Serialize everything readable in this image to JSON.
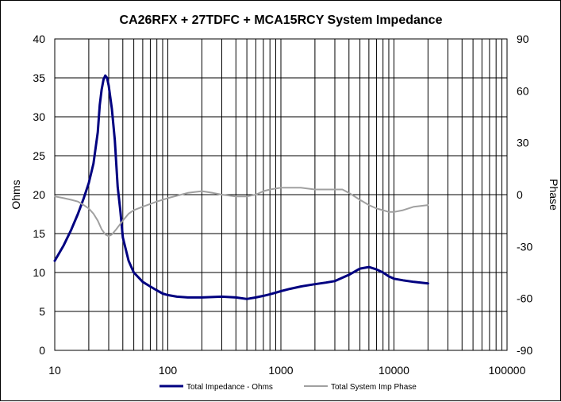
{
  "chart_data": {
    "type": "line",
    "title": "CA26RFX + 27TDFC + MCA15RCY  System Impedance",
    "xlabel": "",
    "ylabel": "Ohms",
    "y2label": "Phase",
    "x_scale": "log",
    "xlim": [
      10,
      100000
    ],
    "ylim": [
      0,
      40
    ],
    "y2lim": [
      -90,
      90
    ],
    "x_ticks": [
      "10",
      "100",
      "1000",
      "10000",
      "100000"
    ],
    "y_ticks": [
      "0",
      "5",
      "10",
      "15",
      "20",
      "25",
      "30",
      "35",
      "40"
    ],
    "y2_ticks": [
      "-90",
      "-60",
      "-30",
      "0",
      "30",
      "60",
      "90"
    ],
    "grid": true,
    "legend_position": "bottom",
    "series": [
      {
        "name": "Total Impedance - Ohms",
        "axis": "left",
        "color": "#000080",
        "points": [
          [
            10,
            11.5
          ],
          [
            12,
            13.5
          ],
          [
            14,
            15.5
          ],
          [
            16,
            17.5
          ],
          [
            18,
            19.5
          ],
          [
            20,
            21.5
          ],
          [
            22,
            24
          ],
          [
            24,
            28
          ],
          [
            25,
            31.5
          ],
          [
            26,
            33.5
          ],
          [
            27,
            34.8
          ],
          [
            28,
            35.3
          ],
          [
            29,
            35
          ],
          [
            30,
            34
          ],
          [
            32,
            31
          ],
          [
            34,
            27
          ],
          [
            36,
            21
          ],
          [
            38,
            18
          ],
          [
            40,
            14.5
          ],
          [
            45,
            11.5
          ],
          [
            50,
            10
          ],
          [
            60,
            8.8
          ],
          [
            70,
            8.2
          ],
          [
            80,
            7.7
          ],
          [
            90,
            7.3
          ],
          [
            100,
            7.1
          ],
          [
            120,
            6.9
          ],
          [
            150,
            6.8
          ],
          [
            200,
            6.8
          ],
          [
            300,
            6.9
          ],
          [
            400,
            6.8
          ],
          [
            500,
            6.6
          ],
          [
            600,
            6.8
          ],
          [
            700,
            7.0
          ],
          [
            800,
            7.2
          ],
          [
            1000,
            7.6
          ],
          [
            1200,
            7.9
          ],
          [
            1500,
            8.2
          ],
          [
            2000,
            8.5
          ],
          [
            2500,
            8.7
          ],
          [
            3000,
            8.9
          ],
          [
            4000,
            9.7
          ],
          [
            5000,
            10.5
          ],
          [
            6000,
            10.7
          ],
          [
            7000,
            10.4
          ],
          [
            8000,
            10.0
          ],
          [
            9000,
            9.5
          ],
          [
            10000,
            9.2
          ],
          [
            12000,
            9.0
          ],
          [
            15000,
            8.8
          ],
          [
            20000,
            8.6
          ]
        ]
      },
      {
        "name": "Total System Imp Phase",
        "axis": "right",
        "color": "#a0a0a0",
        "points": [
          [
            10,
            -1
          ],
          [
            12,
            -2
          ],
          [
            14,
            -3
          ],
          [
            16,
            -4
          ],
          [
            18,
            -6
          ],
          [
            20,
            -8
          ],
          [
            22,
            -11
          ],
          [
            24,
            -15
          ],
          [
            26,
            -20
          ],
          [
            28,
            -23
          ],
          [
            30,
            -24
          ],
          [
            32,
            -23
          ],
          [
            35,
            -20
          ],
          [
            40,
            -15
          ],
          [
            45,
            -11
          ],
          [
            50,
            -9
          ],
          [
            60,
            -7
          ],
          [
            80,
            -4
          ],
          [
            100,
            -2
          ],
          [
            150,
            1
          ],
          [
            200,
            2
          ],
          [
            250,
            1
          ],
          [
            300,
            0
          ],
          [
            400,
            -1
          ],
          [
            500,
            -1
          ],
          [
            600,
            0
          ],
          [
            700,
            2
          ],
          [
            800,
            3
          ],
          [
            1000,
            4
          ],
          [
            1500,
            4
          ],
          [
            2000,
            3
          ],
          [
            3000,
            3
          ],
          [
            3500,
            3
          ],
          [
            4000,
            1
          ],
          [
            5000,
            -3
          ],
          [
            6000,
            -6
          ],
          [
            7000,
            -8
          ],
          [
            8000,
            -9
          ],
          [
            9000,
            -10
          ],
          [
            10000,
            -10
          ],
          [
            12000,
            -9
          ],
          [
            15000,
            -7
          ],
          [
            20000,
            -6
          ]
        ]
      }
    ]
  }
}
